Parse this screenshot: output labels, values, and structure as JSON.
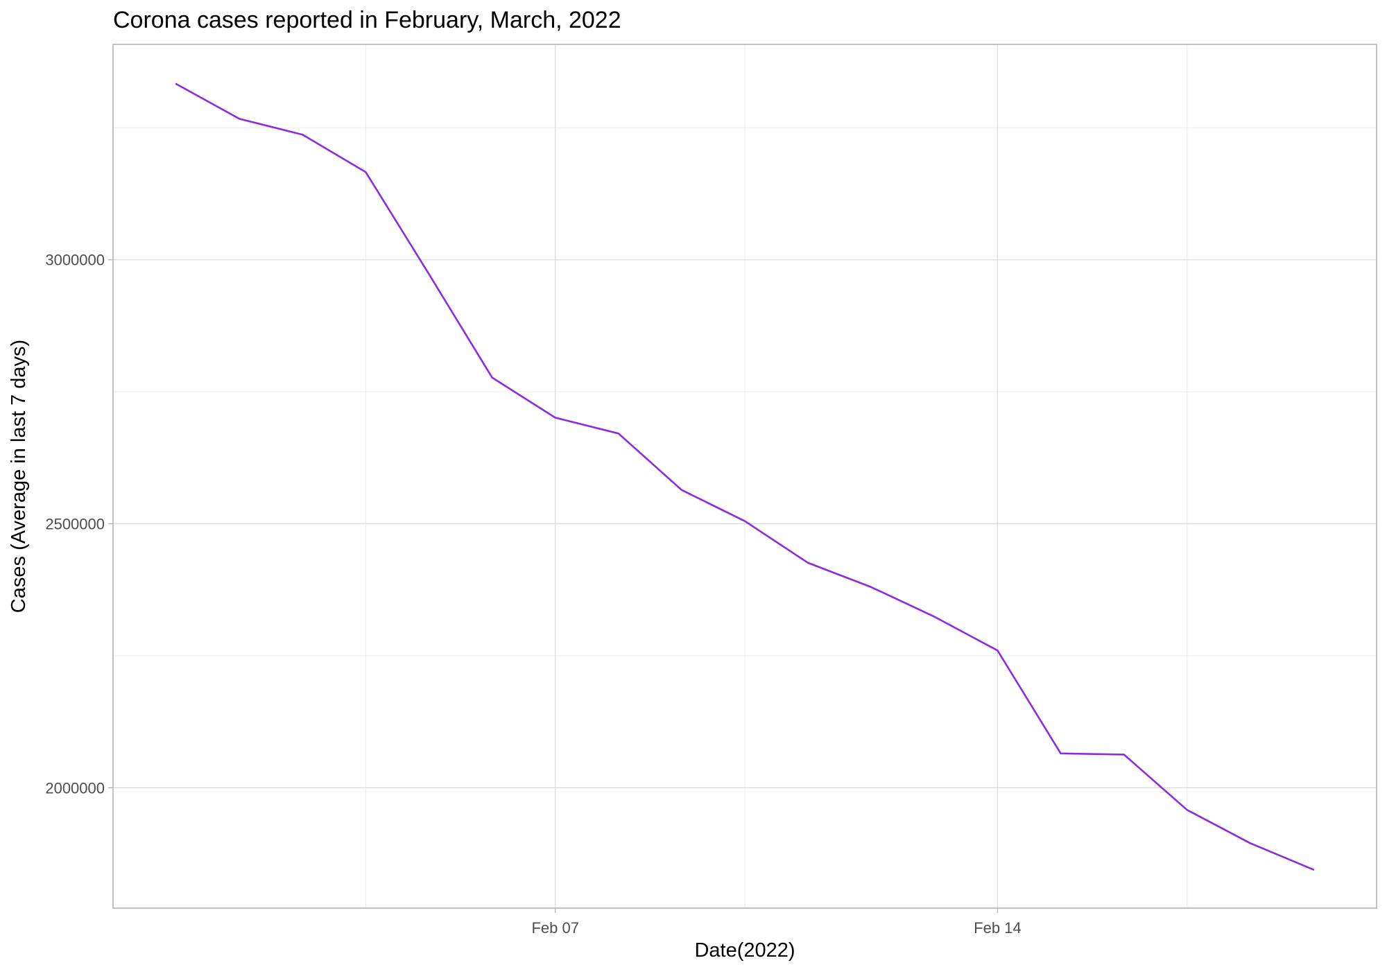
{
  "chart_data": {
    "type": "line",
    "title": "Corona cases reported in February, March, 2022",
    "xlabel": "Date(2022)",
    "ylabel": "Cases (Average in last 7 days)",
    "x_tick_labels": [
      {
        "date": "2022-02-07",
        "label": "Feb 07"
      },
      {
        "date": "2022-02-14",
        "label": "Feb 14"
      }
    ],
    "y_tick_labels": [
      {
        "value": 2000000,
        "label": "2000000"
      },
      {
        "value": 2500000,
        "label": "2500000"
      },
      {
        "value": 3000000,
        "label": "3000000"
      }
    ],
    "y_minor_grid": [
      2250000,
      2750000,
      3250000
    ],
    "x_minor_grid": [
      "2022-02-04",
      "2022-02-10",
      "2022-02-17"
    ],
    "xlim": [
      "2022-01-31",
      "2022-02-20"
    ],
    "ylim": [
      1772000,
      3408000
    ],
    "grid": true,
    "line_color": "#8c2be2",
    "series": [
      {
        "x": [
          "2022-02-01",
          "2022-02-02",
          "2022-02-03",
          "2022-02-04",
          "2022-02-05",
          "2022-02-06",
          "2022-02-07",
          "2022-02-08",
          "2022-02-09",
          "2022-02-10",
          "2022-02-11",
          "2022-02-12",
          "2022-02-13",
          "2022-02-14",
          "2022-02-15",
          "2022-02-16",
          "2022-02-17",
          "2022-02-18",
          "2022-02-19"
        ],
        "y": [
          3333000,
          3267000,
          3237000,
          3166000,
          2973000,
          2777000,
          2701000,
          2671000,
          2564000,
          2505000,
          2426000,
          2380000,
          2324000,
          2260000,
          2065000,
          2063000,
          1958000,
          1895000,
          1845000
        ]
      }
    ]
  }
}
